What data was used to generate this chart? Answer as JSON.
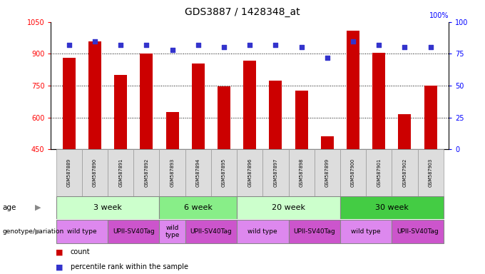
{
  "title": "GDS3887 / 1428348_at",
  "samples": [
    "GSM587889",
    "GSM587890",
    "GSM587891",
    "GSM587892",
    "GSM587893",
    "GSM587894",
    "GSM587895",
    "GSM587896",
    "GSM587897",
    "GSM587898",
    "GSM587899",
    "GSM587900",
    "GSM587901",
    "GSM587902",
    "GSM587903"
  ],
  "counts": [
    880,
    960,
    800,
    900,
    625,
    855,
    748,
    868,
    775,
    725,
    510,
    1010,
    905,
    615,
    750
  ],
  "percentile_ranks": [
    82,
    85,
    82,
    82,
    78,
    82,
    80,
    82,
    82,
    80,
    72,
    85,
    82,
    80,
    80
  ],
  "ylim_left": [
    450,
    1050
  ],
  "ylim_right": [
    0,
    100
  ],
  "yticks_left": [
    450,
    600,
    750,
    900,
    1050
  ],
  "yticks_right": [
    0,
    25,
    50,
    75,
    100
  ],
  "bar_color": "#cc0000",
  "dot_color": "#3333cc",
  "age_groups": [
    {
      "label": "3 week",
      "start": 0,
      "end": 4,
      "color": "#ccffcc"
    },
    {
      "label": "6 week",
      "start": 4,
      "end": 7,
      "color": "#88ee88"
    },
    {
      "label": "20 week",
      "start": 7,
      "end": 11,
      "color": "#ccffcc"
    },
    {
      "label": "30 week",
      "start": 11,
      "end": 15,
      "color": "#44cc44"
    }
  ],
  "genotype_groups": [
    {
      "label": "wild type",
      "start": 0,
      "end": 2,
      "color": "#dd88ee"
    },
    {
      "label": "UPII-SV40Tag",
      "start": 2,
      "end": 4,
      "color": "#cc55cc"
    },
    {
      "label": "wild\ntype",
      "start": 4,
      "end": 5,
      "color": "#dd88ee"
    },
    {
      "label": "UPII-SV40Tag",
      "start": 5,
      "end": 7,
      "color": "#cc55cc"
    },
    {
      "label": "wild type",
      "start": 7,
      "end": 9,
      "color": "#dd88ee"
    },
    {
      "label": "UPII-SV40Tag",
      "start": 9,
      "end": 11,
      "color": "#cc55cc"
    },
    {
      "label": "wild type",
      "start": 11,
      "end": 13,
      "color": "#dd88ee"
    },
    {
      "label": "UPII-SV40Tag",
      "start": 13,
      "end": 15,
      "color": "#cc55cc"
    }
  ],
  "legend_count_color": "#cc0000",
  "legend_dot_color": "#3333cc",
  "background_color": "#ffffff",
  "sample_bg_color": "#dddddd",
  "sample_border_color": "#999999"
}
